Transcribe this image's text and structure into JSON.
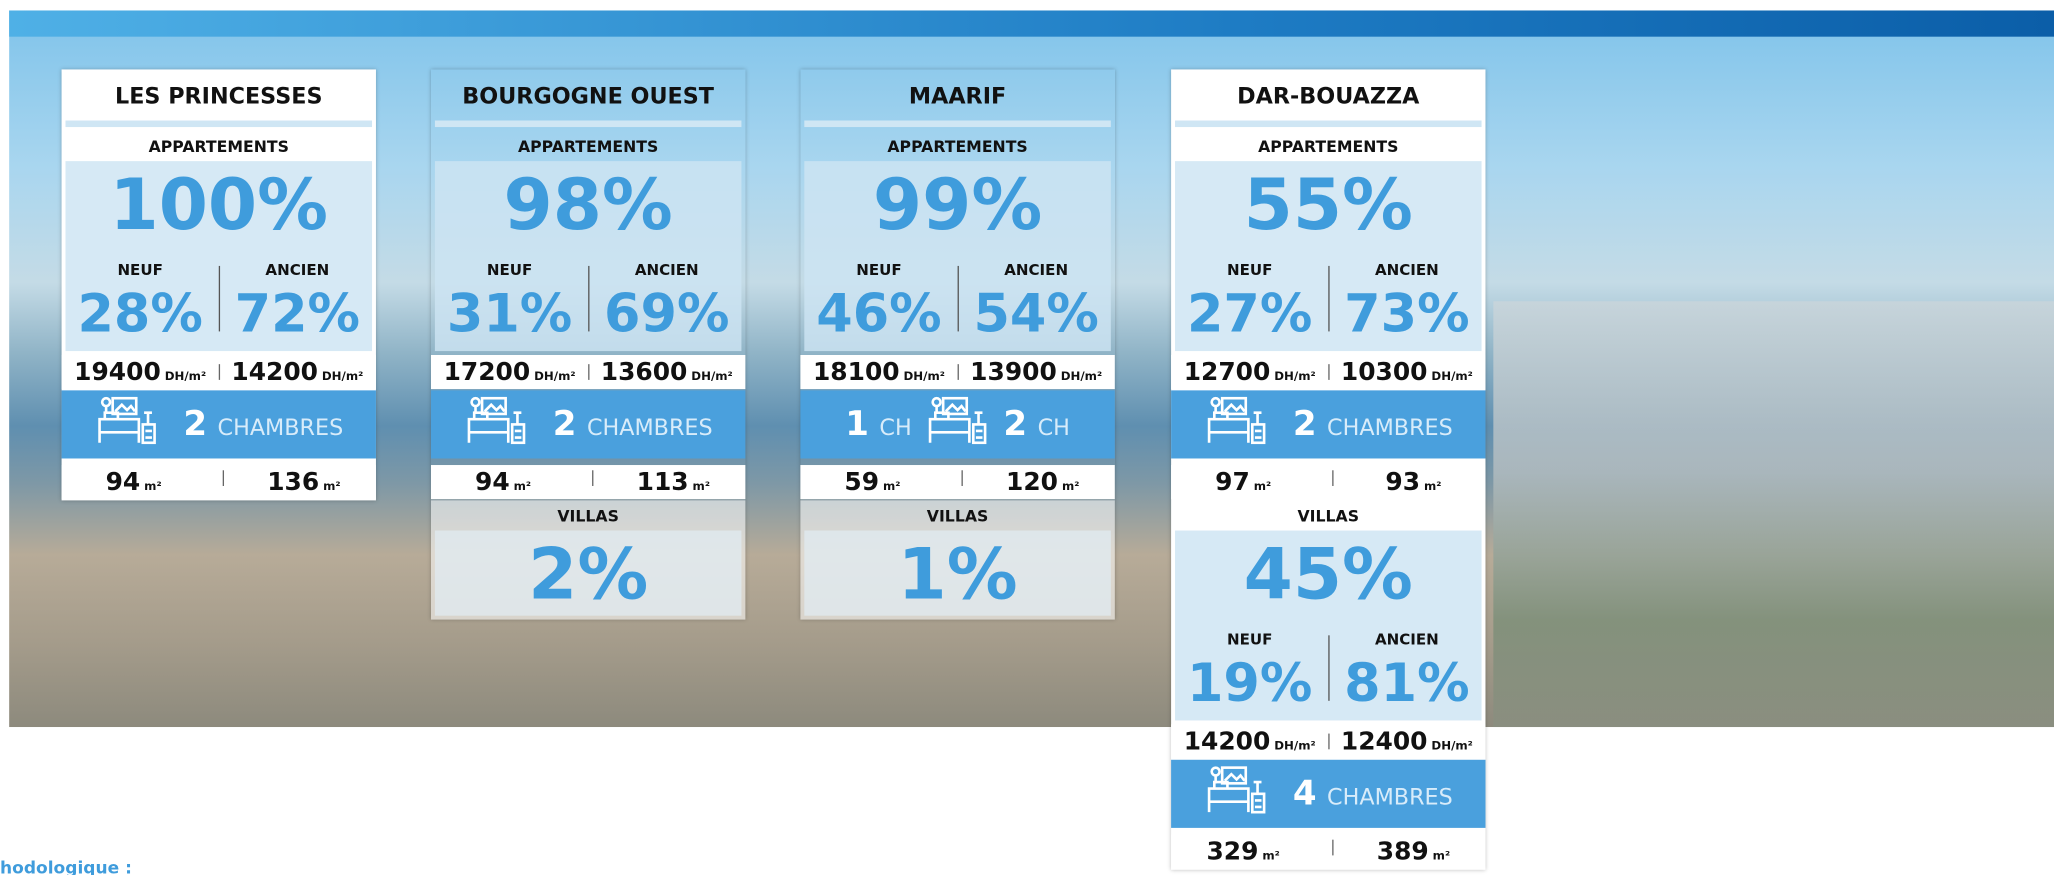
{
  "cards": [
    {
      "title": "LES PRINCESSES",
      "sections": [
        {
          "label": "APPARTEMENTS",
          "share": "100%",
          "price_unit": "DH/m²",
          "area_unit": "m²",
          "neuf": {
            "label": "NEUF",
            "share": "28%",
            "price": "19400",
            "area": "94"
          },
          "ancien": {
            "label": "ANCIEN",
            "share": "72%",
            "price": "14200",
            "area": "136"
          },
          "rooms": [
            {
              "n": "2",
              "label": "CHAMBRES"
            }
          ]
        }
      ]
    },
    {
      "title": "BOURGOGNE OUEST",
      "sections": [
        {
          "label": "APPARTEMENTS",
          "share": "98%",
          "price_unit": "DH/m²",
          "area_unit": "m²",
          "neuf": {
            "label": "NEUF",
            "share": "31%",
            "price": "17200",
            "area": "94"
          },
          "ancien": {
            "label": "ANCIEN",
            "share": "69%",
            "price": "13600",
            "area": "113"
          },
          "rooms": [
            {
              "n": "2",
              "label": "CHAMBRES"
            }
          ]
        },
        {
          "label": "VILLAS",
          "share": "2%"
        }
      ]
    },
    {
      "title": "MAARIF",
      "sections": [
        {
          "label": "APPARTEMENTS",
          "share": "99%",
          "price_unit": "DH/m²",
          "area_unit": "m²",
          "neuf": {
            "label": "NEUF",
            "share": "46%",
            "price": "18100",
            "area": "59"
          },
          "ancien": {
            "label": "ANCIEN",
            "share": "54%",
            "price": "13900",
            "area": "120"
          },
          "rooms": [
            {
              "n": "1",
              "label": "CH"
            },
            {
              "n": "2",
              "label": "CH"
            }
          ]
        },
        {
          "label": "VILLAS",
          "share": "1%"
        }
      ]
    },
    {
      "title": "DAR-BOUAZZA",
      "sections": [
        {
          "label": "APPARTEMENTS",
          "share": "55%",
          "price_unit": "DH/m²",
          "area_unit": "m²",
          "neuf": {
            "label": "NEUF",
            "share": "27%",
            "price": "12700",
            "area": "97"
          },
          "ancien": {
            "label": "ANCIEN",
            "share": "73%",
            "price": "10300",
            "area": "93"
          },
          "rooms": [
            {
              "n": "2",
              "label": "CHAMBRES"
            }
          ]
        },
        {
          "label": "VILLAS",
          "share": "45%",
          "price_unit": "DH/m²",
          "area_unit": "m²",
          "neuf": {
            "label": "NEUF",
            "share": "19%",
            "price": "14200",
            "area": "329"
          },
          "ancien": {
            "label": "ANCIEN",
            "share": "81%",
            "price": "12400",
            "area": "389"
          },
          "rooms": [
            {
              "n": "4",
              "label": "CHAMBRES"
            }
          ]
        }
      ]
    }
  ],
  "footer": "hodologique :"
}
